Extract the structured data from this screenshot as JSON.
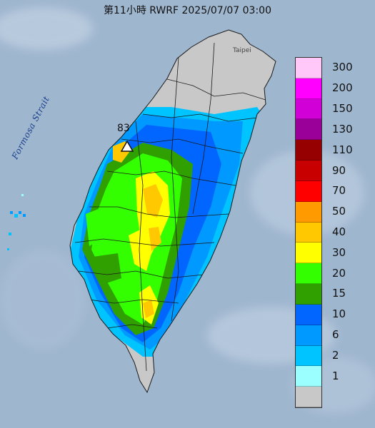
{
  "title": "第11小時  RWRF 2025/07/07 03:00",
  "strait_label": "Formosa Strait",
  "city_label": "Taipei",
  "max_value_label": "83",
  "legend": {
    "items": [
      {
        "label": "300",
        "color": "#ffc8f8"
      },
      {
        "label": "200",
        "color": "#ff00ff"
      },
      {
        "label": "150",
        "color": "#d100d6"
      },
      {
        "label": "130",
        "color": "#9a0099"
      },
      {
        "label": "110",
        "color": "#960000"
      },
      {
        "label": "90",
        "color": "#c80000"
      },
      {
        "label": "70",
        "color": "#ff0000"
      },
      {
        "label": "50",
        "color": "#ff9b00"
      },
      {
        "label": "40",
        "color": "#ffc800"
      },
      {
        "label": "30",
        "color": "#ffff00"
      },
      {
        "label": "20",
        "color": "#33ff00"
      },
      {
        "label": "15",
        "color": "#2fa000"
      },
      {
        "label": "10",
        "color": "#0066ff"
      },
      {
        "label": "6",
        "color": "#0099ff"
      },
      {
        "label": "2",
        "color": "#00c4ff"
      },
      {
        "label": "1",
        "color": "#9bffff"
      },
      {
        "label": "",
        "color": "#c8c8c8"
      }
    ]
  },
  "colors": {
    "sea": "#9fb6cf",
    "land_dry": "#c8c8c8",
    "boundary": "#1a1a1a"
  }
}
